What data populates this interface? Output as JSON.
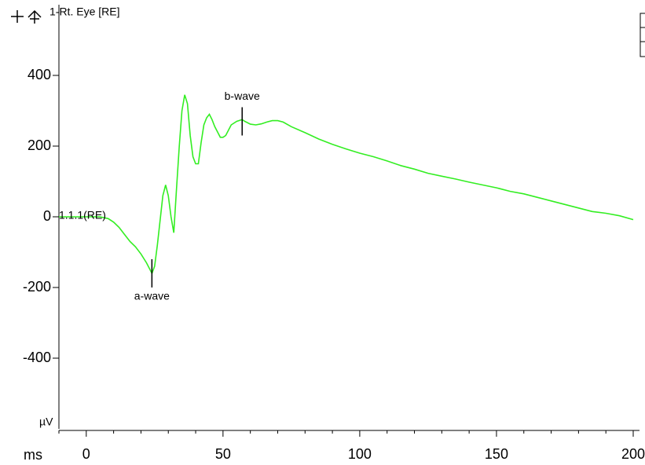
{
  "chart_data": {
    "type": "line",
    "title": "1-Rt. Eye [RE]",
    "xlabel": "ms",
    "ylabel": "µV",
    "xlim": [
      -10,
      200
    ],
    "ylim": [
      -600,
      600
    ],
    "xticks": [
      0,
      50,
      100,
      150,
      200
    ],
    "xminorticks": [
      -10,
      10,
      20,
      30,
      40,
      60,
      70,
      80,
      90,
      110,
      120,
      130,
      140,
      160,
      170,
      180,
      190
    ],
    "yticks": [
      -400,
      -200,
      0,
      200,
      400
    ],
    "series": [
      {
        "name": "1.1.1(RE)",
        "color": "#33ee22",
        "x": [
          -10,
          0,
          5,
          8,
          10,
          12,
          14,
          16,
          18,
          20,
          22,
          24,
          25,
          26,
          27,
          28,
          29,
          30,
          31,
          32,
          33,
          34,
          35,
          36,
          37,
          38,
          39,
          40,
          41,
          42,
          43,
          44,
          45,
          46,
          47,
          48,
          49,
          50,
          51,
          52,
          53,
          55,
          57,
          58,
          60,
          62,
          64,
          66,
          68,
          70,
          72,
          75,
          80,
          85,
          90,
          95,
          100,
          105,
          110,
          115,
          120,
          125,
          130,
          135,
          140,
          145,
          150,
          155,
          160,
          165,
          170,
          175,
          180,
          185,
          190,
          195,
          200
        ],
        "values": [
          0,
          0,
          0,
          -5,
          -15,
          -30,
          -50,
          -70,
          -85,
          -105,
          -130,
          -160,
          -140,
          -80,
          -10,
          60,
          90,
          60,
          0,
          -45,
          80,
          200,
          300,
          345,
          320,
          230,
          170,
          150,
          150,
          210,
          260,
          280,
          290,
          275,
          255,
          240,
          225,
          225,
          230,
          245,
          260,
          270,
          275,
          270,
          262,
          260,
          263,
          268,
          272,
          272,
          268,
          255,
          238,
          220,
          205,
          192,
          180,
          170,
          158,
          145,
          135,
          123,
          115,
          107,
          98,
          90,
          82,
          72,
          65,
          55,
          45,
          35,
          25,
          15,
          10,
          3,
          -8
        ]
      }
    ],
    "annotations": [
      {
        "text": "a-wave",
        "x": 24,
        "y": -160
      },
      {
        "text": "b-wave",
        "x": 57,
        "y": 270
      }
    ]
  }
}
